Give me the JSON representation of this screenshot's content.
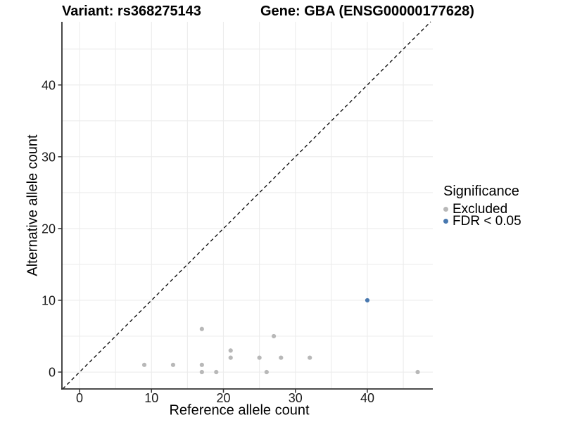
{
  "chart_data": {
    "type": "scatter",
    "titles": [
      "Variant: rs368275143",
      "Gene: GBA (ENSG00000177628)"
    ],
    "xlabel": "Reference allele count",
    "ylabel": "Alternative allele count",
    "xlim": [
      -2.45,
      49.1
    ],
    "ylim": [
      -2.35,
      48.8
    ],
    "x_ticks": [
      0,
      10,
      20,
      30,
      40
    ],
    "y_ticks": [
      0,
      10,
      20,
      30,
      40
    ],
    "x_minor_ticks": [
      5,
      15,
      25,
      35,
      45
    ],
    "y_minor_ticks": [
      5,
      15,
      25,
      35,
      45
    ],
    "grid": true,
    "grid_color": "#ececec",
    "axis_color": "#333333",
    "reference_line": {
      "type": "identity y=x",
      "style": "dashed",
      "color": "#111111"
    },
    "series": [
      {
        "name": "Excluded",
        "color": "#b8b8b8",
        "points": [
          [
            9,
            1
          ],
          [
            13,
            1
          ],
          [
            17,
            0
          ],
          [
            17,
            1
          ],
          [
            17,
            6
          ],
          [
            19,
            0
          ],
          [
            21,
            2
          ],
          [
            21,
            3
          ],
          [
            25,
            2
          ],
          [
            26,
            0
          ],
          [
            27,
            5
          ],
          [
            28,
            2
          ],
          [
            32,
            2
          ],
          [
            47,
            0
          ]
        ]
      },
      {
        "name": "FDR < 0.05",
        "color": "#4878af",
        "points": [
          [
            40,
            10
          ]
        ]
      }
    ],
    "legend": {
      "title": "Significance",
      "position": "right",
      "items": [
        {
          "label": "Excluded",
          "color": "#b8b8b8"
        },
        {
          "label": "FDR < 0.05",
          "color": "#4878af"
        }
      ]
    }
  }
}
